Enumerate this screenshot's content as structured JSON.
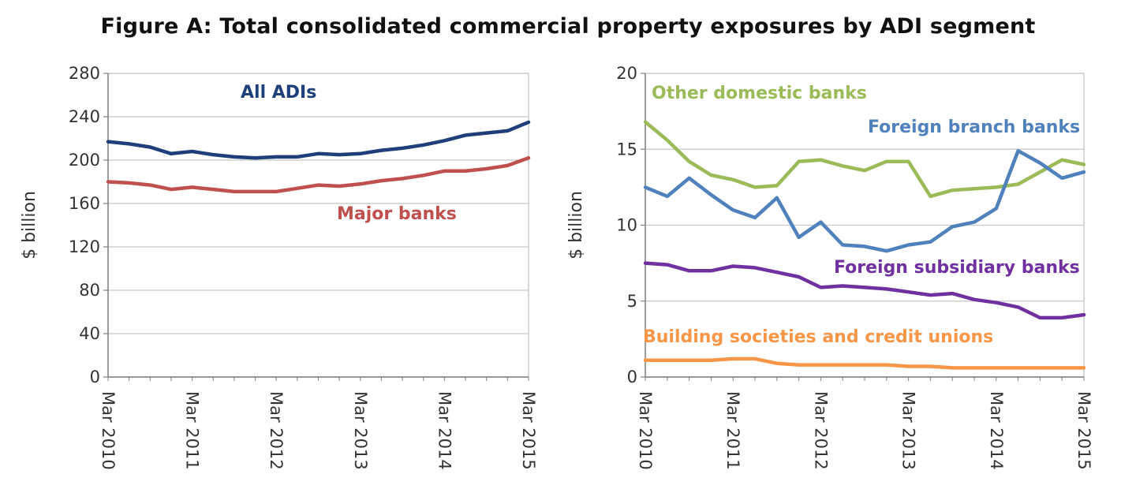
{
  "figure_title": "Figure A: Total consolidated commercial property exposures by ADI segment",
  "x_tick_labels": [
    "Mar 2010",
    "Mar 2011",
    "Mar 2012",
    "Mar 2013",
    "Mar 2014",
    "Mar 2015"
  ],
  "chart_data": [
    {
      "type": "line",
      "ylabel": "$ billion",
      "ylim": [
        0,
        280
      ],
      "yticks": [
        0,
        40,
        80,
        120,
        160,
        200,
        240,
        280
      ],
      "grid": "horizontal",
      "x_start": "Mar 2010",
      "x_end": "Mar 2015",
      "series": [
        {
          "name": "All ADIs",
          "color": "#1f3f7a",
          "values": [
            217,
            215,
            212,
            206,
            208,
            205,
            203,
            202,
            203,
            203,
            206,
            205,
            206,
            209,
            211,
            214,
            218,
            223,
            225,
            227,
            235
          ]
        },
        {
          "name": "Major banks",
          "color": "#c0504d",
          "values": [
            180,
            179,
            177,
            173,
            175,
            173,
            171,
            171,
            171,
            174,
            177,
            176,
            178,
            181,
            183,
            186,
            190,
            190,
            192,
            195,
            202
          ]
        }
      ]
    },
    {
      "type": "line",
      "ylabel": "$ billion",
      "ylim": [
        0,
        20
      ],
      "yticks": [
        0,
        5,
        10,
        15,
        20
      ],
      "grid": "horizontal",
      "x_start": "Mar 2010",
      "x_end": "Mar 2015",
      "series": [
        {
          "name": "Other domestic banks",
          "color": "#9bbb59",
          "values": [
            16.8,
            15.6,
            14.2,
            13.3,
            13.0,
            12.5,
            12.6,
            14.2,
            14.3,
            13.9,
            13.6,
            14.2,
            14.2,
            11.9,
            12.3,
            12.4,
            12.5,
            12.7,
            13.5,
            14.3,
            14.0
          ]
        },
        {
          "name": "Foreign branch banks",
          "color": "#4f81bd",
          "values": [
            12.5,
            11.9,
            13.1,
            12.0,
            11.0,
            10.5,
            11.8,
            9.2,
            10.2,
            8.7,
            8.6,
            8.3,
            8.7,
            8.9,
            9.9,
            10.2,
            11.1,
            14.9,
            14.1,
            13.1,
            13.5
          ]
        },
        {
          "name": "Foreign subsidiary banks",
          "color": "#7030a0",
          "values": [
            7.5,
            7.4,
            7.0,
            7.0,
            7.3,
            7.2,
            6.9,
            6.6,
            5.9,
            6.0,
            5.9,
            5.8,
            5.6,
            5.4,
            5.5,
            5.1,
            4.9,
            4.6,
            3.9,
            3.9,
            4.1
          ]
        },
        {
          "name": "Building societies and credit unions",
          "color": "#f79646",
          "values": [
            1.1,
            1.1,
            1.1,
            1.1,
            1.2,
            1.2,
            0.9,
            0.8,
            0.8,
            0.8,
            0.8,
            0.8,
            0.7,
            0.7,
            0.6,
            0.6,
            0.6,
            0.6,
            0.6,
            0.6,
            0.6
          ]
        }
      ]
    }
  ]
}
